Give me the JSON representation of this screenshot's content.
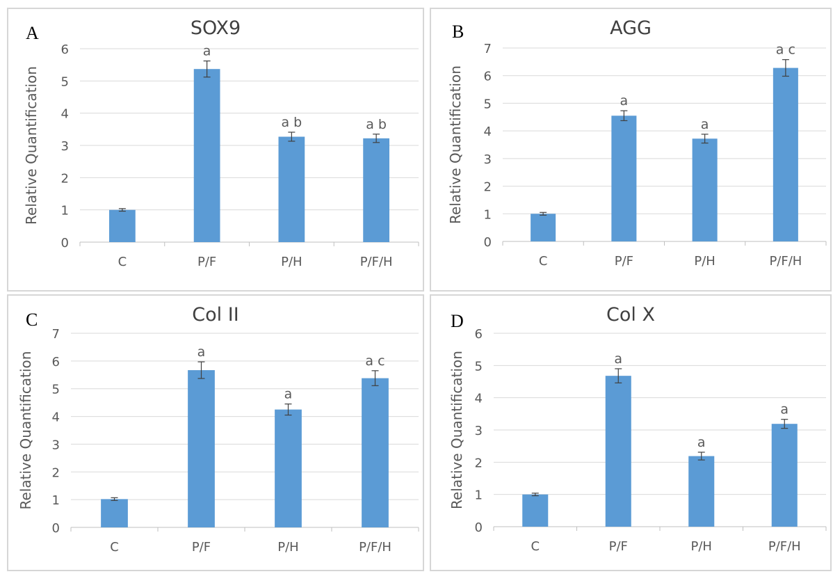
{
  "panels": [
    {
      "letter": "A"
    },
    {
      "letter": "B"
    },
    {
      "letter": "C"
    },
    {
      "letter": "D"
    }
  ],
  "bar_color": "#5b9bd5",
  "chart_data": [
    {
      "type": "bar",
      "title": "SOX9",
      "ylabel": "Relative Quantification",
      "xlabel": "",
      "categories": [
        "C",
        "P/F",
        "P/H",
        "P/F/H"
      ],
      "values": [
        1.0,
        5.37,
        3.27,
        3.22
      ],
      "errors": [
        0.04,
        0.25,
        0.14,
        0.13
      ],
      "annotations": [
        "",
        "a",
        "a b",
        "a b"
      ],
      "ylim": [
        0,
        6
      ],
      "yticks": [
        0,
        1,
        2,
        3,
        4,
        5,
        6
      ],
      "grid": true
    },
    {
      "type": "bar",
      "title": "AGG",
      "ylabel": "Relative Quantification",
      "xlabel": "",
      "categories": [
        "C",
        "P/F",
        "P/H",
        "P/F/H"
      ],
      "values": [
        1.0,
        4.55,
        3.72,
        6.28
      ],
      "errors": [
        0.05,
        0.18,
        0.16,
        0.3
      ],
      "annotations": [
        "",
        "a",
        "a",
        "a c"
      ],
      "ylim": [
        0,
        7
      ],
      "yticks": [
        0,
        1,
        2,
        3,
        4,
        5,
        6,
        7
      ],
      "grid": true
    },
    {
      "type": "bar",
      "title": "Col II",
      "ylabel": "Relative Quantification",
      "xlabel": "",
      "categories": [
        "C",
        "P/F",
        "P/H",
        "P/F/H"
      ],
      "values": [
        1.02,
        5.67,
        4.25,
        5.38
      ],
      "errors": [
        0.05,
        0.3,
        0.2,
        0.27
      ],
      "annotations": [
        "",
        "a",
        "a",
        "a c"
      ],
      "ylim": [
        0,
        7
      ],
      "yticks": [
        0,
        1,
        2,
        3,
        4,
        5,
        6,
        7
      ],
      "grid": true
    },
    {
      "type": "bar",
      "title": "Col X",
      "ylabel": "Relative Quantification",
      "xlabel": "",
      "categories": [
        "C",
        "P/F",
        "P/H",
        "P/F/H"
      ],
      "values": [
        1.0,
        4.68,
        2.19,
        3.19
      ],
      "errors": [
        0.04,
        0.22,
        0.12,
        0.14
      ],
      "annotations": [
        "",
        "a",
        "a",
        "a"
      ],
      "ylim": [
        0,
        6
      ],
      "yticks": [
        0,
        1,
        2,
        3,
        4,
        5,
        6
      ],
      "grid": true
    }
  ]
}
